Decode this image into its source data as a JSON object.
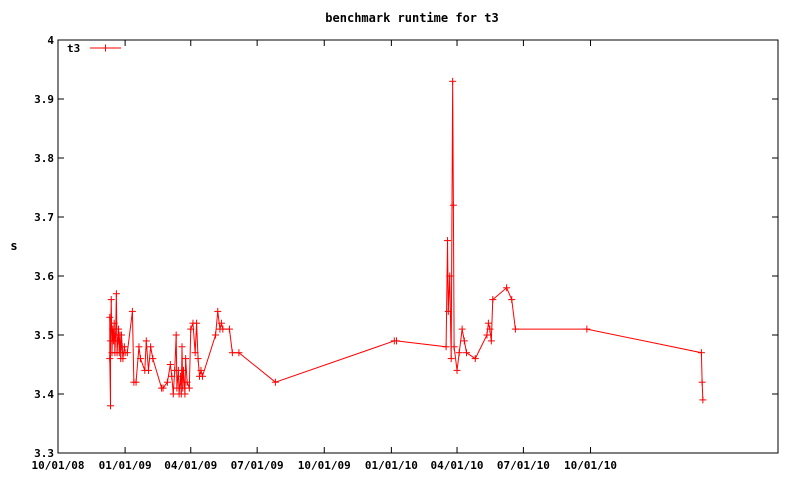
{
  "chart_data": {
    "type": "line",
    "title": "benchmark runtime for t3",
    "xlabel": "",
    "ylabel": "s",
    "ylim": [
      3.3,
      4.0
    ],
    "xlim": [
      "2008-10-01",
      "2011-06-15"
    ],
    "x_ticks": [
      "10/01/08",
      "01/01/09",
      "04/01/09",
      "07/01/09",
      "10/01/09",
      "01/01/10",
      "04/01/10",
      "07/01/10",
      "10/01/10"
    ],
    "x_tick_dates": [
      "2008-10-01",
      "2009-01-01",
      "2009-04-01",
      "2009-07-01",
      "2009-10-01",
      "2010-01-01",
      "2010-04-01",
      "2010-07-01",
      "2010-10-01"
    ],
    "y_ticks": [
      "3.3",
      "3.4",
      "3.5",
      "3.6",
      "3.7",
      "3.8",
      "3.9",
      "4"
    ],
    "legend_position": "top-left",
    "grid": false,
    "color": "#ff0000",
    "series": [
      {
        "name": "t3",
        "points": [
          [
            "2008-12-11",
            3.53
          ],
          [
            "2008-12-11",
            3.46
          ],
          [
            "2008-12-12",
            3.38
          ],
          [
            "2008-12-12",
            3.49
          ],
          [
            "2008-12-13",
            3.56
          ],
          [
            "2008-12-14",
            3.47
          ],
          [
            "2008-12-15",
            3.51
          ],
          [
            "2008-12-16",
            3.49
          ],
          [
            "2008-12-17",
            3.52
          ],
          [
            "2008-12-18",
            3.47
          ],
          [
            "2008-12-19",
            3.5
          ],
          [
            "2008-12-20",
            3.57
          ],
          [
            "2008-12-21",
            3.47
          ],
          [
            "2008-12-22",
            3.49
          ],
          [
            "2008-12-23",
            3.51
          ],
          [
            "2008-12-24",
            3.47
          ],
          [
            "2008-12-25",
            3.5
          ],
          [
            "2008-12-26",
            3.46
          ],
          [
            "2008-12-27",
            3.5
          ],
          [
            "2008-12-28",
            3.48
          ],
          [
            "2008-12-29",
            3.46
          ],
          [
            "2008-12-31",
            3.48
          ],
          [
            "2009-01-01",
            3.47
          ],
          [
            "2009-01-04",
            3.47
          ],
          [
            "2009-01-11",
            3.54
          ],
          [
            "2009-01-13",
            3.42
          ],
          [
            "2009-01-16",
            3.42
          ],
          [
            "2009-01-20",
            3.48
          ],
          [
            "2009-01-22",
            3.46
          ],
          [
            "2009-01-28",
            3.44
          ],
          [
            "2009-01-30",
            3.49
          ],
          [
            "2009-02-02",
            3.44
          ],
          [
            "2009-02-05",
            3.48
          ],
          [
            "2009-02-08",
            3.46
          ],
          [
            "2009-02-20",
            3.41
          ],
          [
            "2009-02-22",
            3.41
          ],
          [
            "2009-02-28",
            3.42
          ],
          [
            "2009-03-04",
            3.45
          ],
          [
            "2009-03-06",
            3.43
          ],
          [
            "2009-03-08",
            3.4
          ],
          [
            "2009-03-10",
            3.44
          ],
          [
            "2009-03-12",
            3.5
          ],
          [
            "2009-03-13",
            3.41
          ],
          [
            "2009-03-15",
            3.44
          ],
          [
            "2009-03-16",
            3.4
          ],
          [
            "2009-03-18",
            3.43
          ],
          [
            "2009-03-19",
            3.4
          ],
          [
            "2009-03-20",
            3.48
          ],
          [
            "2009-03-21",
            3.41
          ],
          [
            "2009-03-22",
            3.44
          ],
          [
            "2009-03-24",
            3.4
          ],
          [
            "2009-03-25",
            3.46
          ],
          [
            "2009-03-27",
            3.42
          ],
          [
            "2009-03-30",
            3.41
          ],
          [
            "2009-04-01",
            3.51
          ],
          [
            "2009-04-04",
            3.52
          ],
          [
            "2009-04-07",
            3.47
          ],
          [
            "2009-04-09",
            3.52
          ],
          [
            "2009-04-11",
            3.46
          ],
          [
            "2009-04-13",
            3.43
          ],
          [
            "2009-04-15",
            3.44
          ],
          [
            "2009-04-17",
            3.43
          ],
          [
            "2009-05-05",
            3.5
          ],
          [
            "2009-05-08",
            3.54
          ],
          [
            "2009-05-11",
            3.51
          ],
          [
            "2009-05-13",
            3.52
          ],
          [
            "2009-05-15",
            3.51
          ],
          [
            "2009-05-24",
            3.51
          ],
          [
            "2009-05-28",
            3.47
          ],
          [
            "2009-06-06",
            3.47
          ],
          [
            "2009-07-26",
            3.42
          ],
          [
            "2010-01-05",
            3.49
          ],
          [
            "2010-01-08",
            3.49
          ],
          [
            "2010-03-17",
            3.48
          ],
          [
            "2010-03-19",
            3.66
          ],
          [
            "2010-03-20",
            3.54
          ],
          [
            "2010-03-22",
            3.6
          ],
          [
            "2010-03-24",
            3.46
          ],
          [
            "2010-03-26",
            3.93
          ],
          [
            "2010-03-27",
            3.72
          ],
          [
            "2010-03-28",
            3.48
          ],
          [
            "2010-04-01",
            3.44
          ],
          [
            "2010-04-04",
            3.47
          ],
          [
            "2010-04-08",
            3.51
          ],
          [
            "2010-04-11",
            3.49
          ],
          [
            "2010-04-14",
            3.47
          ],
          [
            "2010-04-26",
            3.46
          ],
          [
            "2010-05-12",
            3.5
          ],
          [
            "2010-05-14",
            3.52
          ],
          [
            "2010-05-16",
            3.51
          ],
          [
            "2010-05-18",
            3.49
          ],
          [
            "2010-05-20",
            3.56
          ],
          [
            "2010-06-08",
            3.58
          ],
          [
            "2010-06-15",
            3.56
          ],
          [
            "2010-06-20",
            3.51
          ],
          [
            "2010-09-26",
            3.51
          ],
          [
            "2011-03-02",
            3.47
          ],
          [
            "2011-03-03",
            3.42
          ],
          [
            "2011-03-04",
            3.39
          ]
        ]
      }
    ]
  }
}
